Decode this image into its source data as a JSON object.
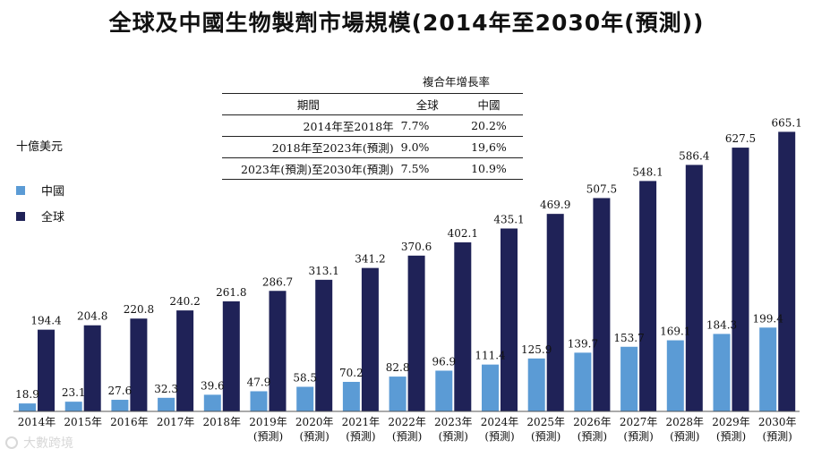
{
  "title": "全球及中國生物製劑市場規模(2014年至2030年(預測))",
  "colors": {
    "china": "#5b9bd5",
    "global": "#1f2257",
    "axis": "#555555"
  },
  "legend": {
    "china": "中國",
    "global": "全球"
  },
  "cagr_table": {
    "title": "複合年增長率",
    "headers": [
      "期間",
      "全球",
      "中國"
    ],
    "rows": [
      {
        "period": "2014年至2018年",
        "global": "7.7%",
        "china": "20.2%"
      },
      {
        "period": "2018年至2023年(預測)",
        "global": "9.0%",
        "china": "19,6%"
      },
      {
        "period": "2023年(預測)至2030年(預測)",
        "global": "7.5%",
        "china": "10.9%"
      }
    ]
  },
  "chart_data": {
    "type": "bar",
    "title": "全球及中國生物製劑市場規模(2014年至2030年(預測))",
    "ylabel": "十億美元",
    "xlabel": "",
    "ylim": [
      0,
      700
    ],
    "categories": [
      "2014年",
      "2015年",
      "2016年",
      "2017年",
      "2018年",
      "2019年",
      "2020年",
      "2021年",
      "2022年",
      "2023年",
      "2024年",
      "2025年",
      "2026年",
      "2027年",
      "2028年",
      "2029年",
      "2030年"
    ],
    "category_notes": [
      "",
      "",
      "",
      "",
      "",
      "(預測)",
      "(預測)",
      "(預測)",
      "(預測)",
      "(預測)",
      "(預測)",
      "(預測)",
      "(預測)",
      "(預測)",
      "(預測)",
      "(預測)",
      "(預測)"
    ],
    "series": [
      {
        "name": "中國",
        "values": [
          18.9,
          23.1,
          27.6,
          32.3,
          39.6,
          47.9,
          58.5,
          70.2,
          82.8,
          96.9,
          111.4,
          125.9,
          139.7,
          153.7,
          169.1,
          184.3,
          199.4
        ]
      },
      {
        "name": "全球",
        "values": [
          194.4,
          204.8,
          220.8,
          240.2,
          261.8,
          286.7,
          313.1,
          341.2,
          370.6,
          402.1,
          435.1,
          469.9,
          507.5,
          548.1,
          586.4,
          627.5,
          665.1
        ]
      }
    ],
    "value_labels": {
      "china": [
        "18.9",
        "23.1",
        "27.6",
        "32.3",
        "39.6",
        "47.9",
        "58.5",
        "70.2",
        "82.8",
        "96.9",
        "111.4",
        "125.9",
        "139.7",
        "153.7",
        "169.1",
        "184.3",
        "199.4"
      ],
      "global": [
        "194.4",
        "204.8",
        "220.8",
        "240.2",
        "261.8",
        "286.7",
        "313.1",
        "341.2",
        "370.6",
        "402.1",
        "435.1",
        "469.9",
        "507.5",
        "548.1",
        "586.4",
        "627.5",
        "665.1"
      ]
    },
    "legend_position": "left"
  },
  "watermark": "大數跨境"
}
